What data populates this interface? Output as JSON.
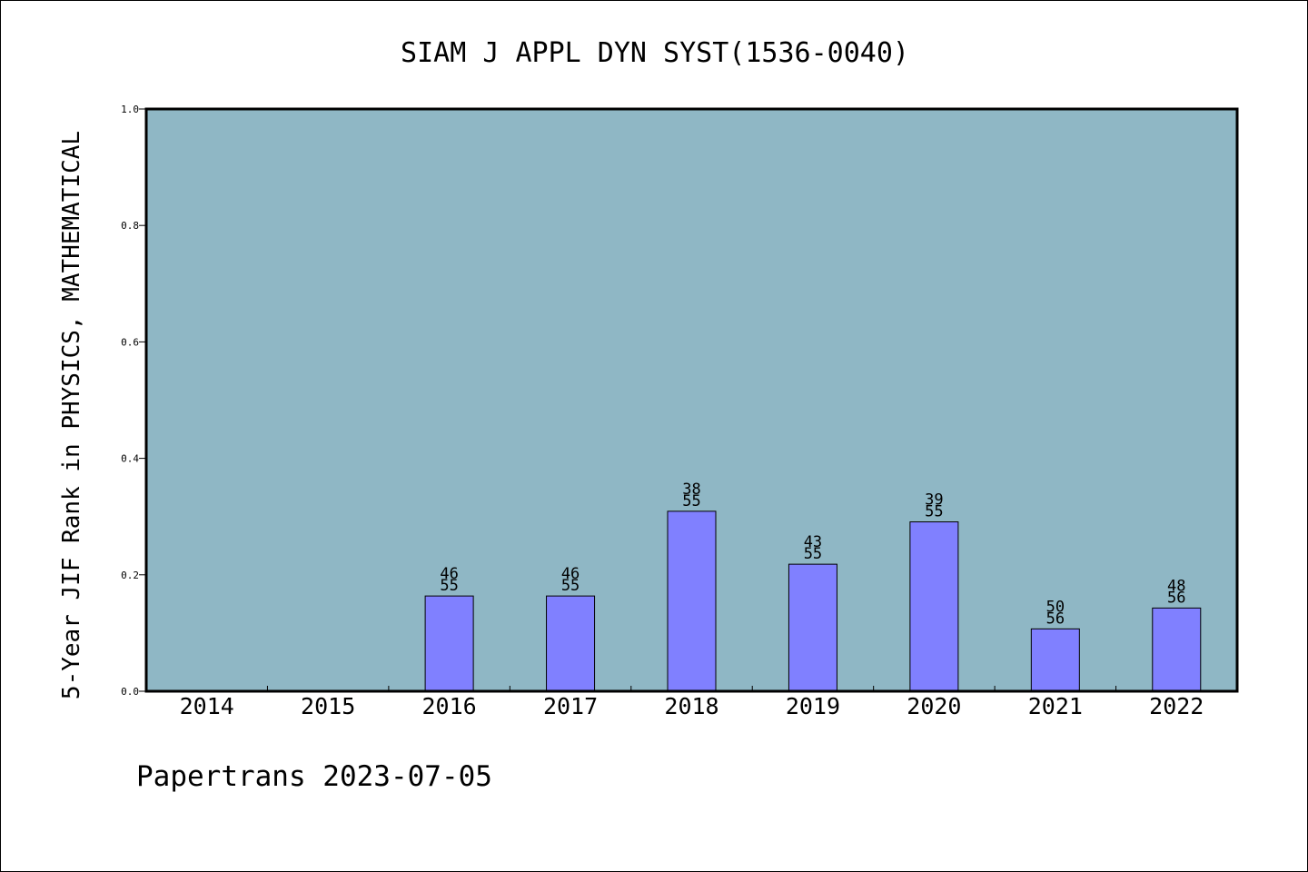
{
  "chart_data": {
    "type": "bar",
    "title": "SIAM J APPL DYN SYST(1536-0040)",
    "xlabel": "",
    "ylabel": "5-Year JIF Rank in PHYSICS, MATHEMATICAL",
    "categories": [
      "2014",
      "2015",
      "2016",
      "2017",
      "2018",
      "2019",
      "2020",
      "2021",
      "2022"
    ],
    "series": [
      {
        "values": [
          null,
          null,
          0.1636,
          0.1636,
          0.3091,
          0.2182,
          0.2909,
          0.1071,
          0.1429
        ],
        "rank_labels": [
          null,
          null,
          [
            "46",
            "55"
          ],
          [
            "46",
            "55"
          ],
          [
            "38",
            "55"
          ],
          [
            "43",
            "55"
          ],
          [
            "39",
            "55"
          ],
          [
            "50",
            "56"
          ],
          [
            "48",
            "56"
          ]
        ]
      }
    ],
    "ylim": [
      0,
      1.0
    ],
    "yticks": [
      "0.0",
      "0.2",
      "0.4",
      "0.6",
      "0.8",
      "1.0"
    ],
    "grid": false,
    "colors": {
      "plot_background": "#8fb7c5",
      "bar_fill": "#8080ff",
      "bar_stroke": "#000000"
    }
  },
  "footer": {
    "text": "Papertrans 2023-07-05"
  }
}
